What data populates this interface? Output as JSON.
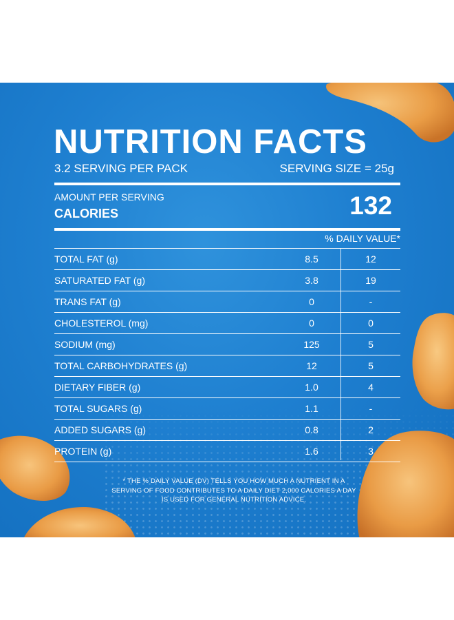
{
  "title": "NUTRITION FACTS",
  "servings_per_pack": "3.2 SERVING PER PACK",
  "serving_size": "SERVING SIZE = 25g",
  "amount_per_serving": "AMOUNT PER SERVING",
  "calories_label": "CALORIES",
  "calories_value": "132",
  "daily_value_header": "% DAILY VALUE*",
  "nutrients": [
    {
      "name": "TOTAL FAT (g)",
      "amount": "8.5",
      "dv": "12"
    },
    {
      "name": "SATURATED FAT (g)",
      "amount": "3.8",
      "dv": "19"
    },
    {
      "name": "TRANS FAT (g)",
      "amount": "0",
      "dv": "-"
    },
    {
      "name": "CHOLESTEROL (mg)",
      "amount": "0",
      "dv": "0"
    },
    {
      "name": "SODIUM (mg)",
      "amount": "125",
      "dv": "5"
    },
    {
      "name": "TOTAL CARBOHYDRATES (g)",
      "amount": "12",
      "dv": "5"
    },
    {
      "name": "DIETARY FIBER (g)",
      "amount": "1.0",
      "dv": "4"
    },
    {
      "name": "TOTAL SUGARS (g)",
      "amount": "1.1",
      "dv": "-"
    },
    {
      "name": "ADDED SUGARS (g)",
      "amount": "0.8",
      "dv": "2"
    },
    {
      "name": "PROTEIN (g)",
      "amount": "1.6",
      "dv": "3"
    }
  ],
  "footnote": "* THE % DAILY VALUE (DV) TELLS YOU HOW MUCH A NUTRIENT IN A SERVING OF FOOD CONTRIBUTES TO A DAILY DIET 2,000 CALORIES A DAY IS USED FOR GENERAL NUTRITION ADVICE.",
  "colors": {
    "background_blue": "#1e7fd0",
    "text": "#ffffff",
    "chip_orange": "#e89a45"
  }
}
